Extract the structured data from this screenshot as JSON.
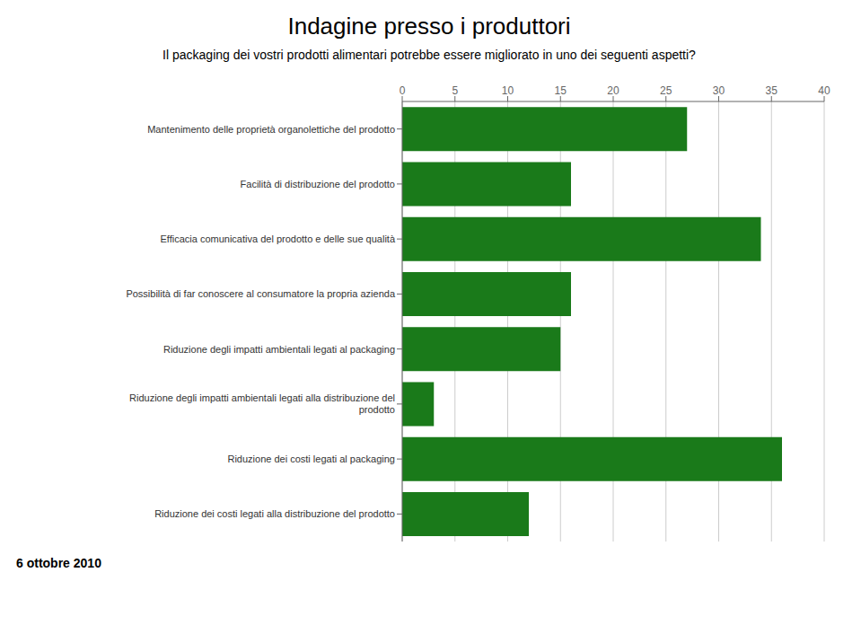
{
  "chart_data": {
    "type": "bar",
    "orientation": "horizontal",
    "title": "Indagine presso i produttori",
    "subtitle": "Il packaging dei vostri prodotti alimentari potrebbe essere migliorato in uno dei seguenti aspetti?",
    "categories": [
      "Mantenimento delle proprietà organolettiche del prodotto",
      "Facilità di distribuzione del prodotto",
      "Efficacia comunicativa del prodotto e delle sue qualità",
      "Possibilità di far conoscere al consumatore la propria azienda",
      "Riduzione degli impatti ambientali legati al packaging",
      "Riduzione degli impatti ambientali legati alla distribuzione del\nprodotto",
      "Riduzione dei costi legati al packaging",
      "Riduzione dei costi legati alla distribuzione del prodotto"
    ],
    "values": [
      27,
      16,
      34,
      16,
      15,
      3,
      36,
      12
    ],
    "color": "#1a7a1a",
    "xlim": [
      0,
      40
    ],
    "xticks": [
      0,
      5,
      10,
      15,
      20,
      25,
      30,
      35,
      40
    ],
    "grid": true,
    "annotations": [
      "6 ottobre 2010"
    ]
  }
}
